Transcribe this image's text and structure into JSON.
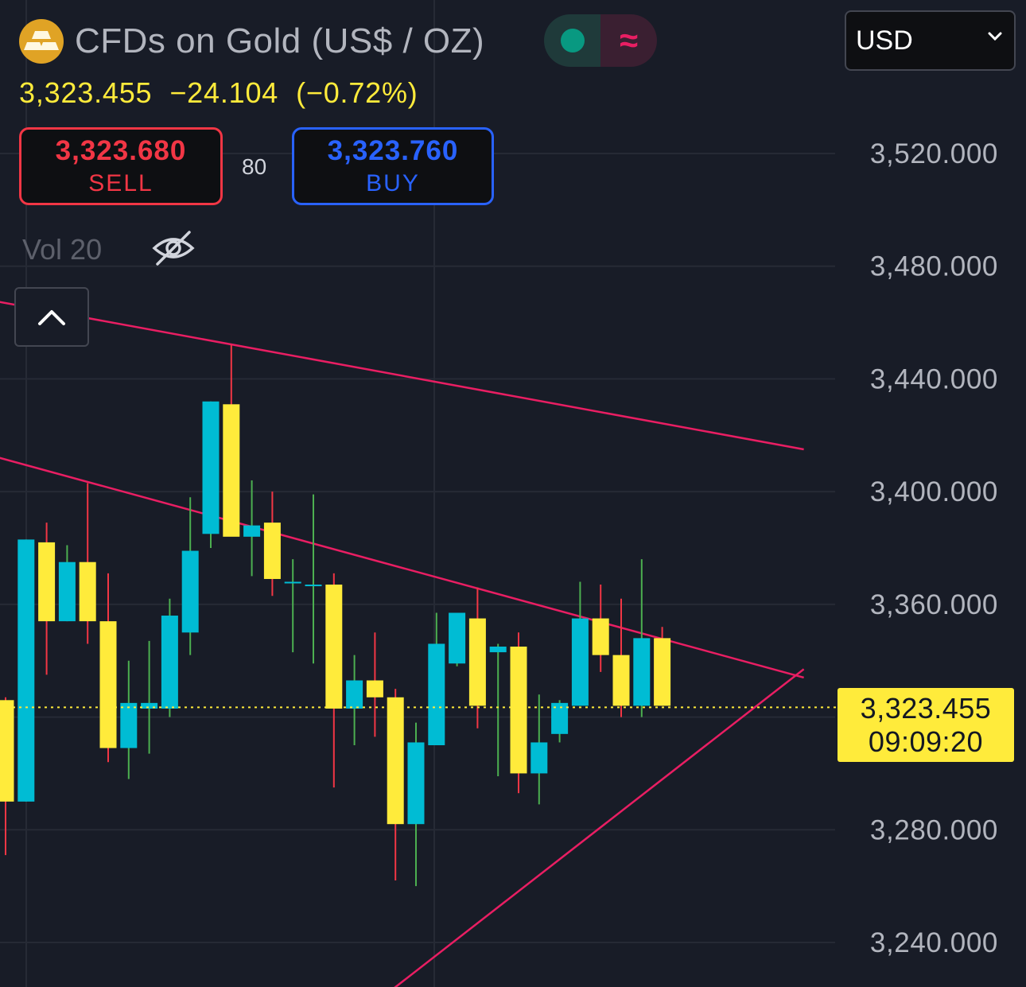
{
  "header": {
    "symbol_title": "CFDs on Gold (US$ / OZ)",
    "logo_icon": "gold-bars-icon",
    "status_icons": [
      "market-open-dot-icon",
      "delayed-data-wave-icon"
    ],
    "status_wave": "≈"
  },
  "quote": {
    "last": "3,323.455",
    "change": "−24.104",
    "change_pct": "(−0.72%)"
  },
  "trade": {
    "sell_price": "3,323.680",
    "sell_label": "SELL",
    "spread": "80",
    "buy_price": "3,323.760",
    "buy_label": "BUY"
  },
  "indicator": {
    "label": "Vol 20",
    "visibility_icon": "eye-off-icon"
  },
  "collapse_icon": "chevron-up-icon",
  "currency": {
    "selected": "USD",
    "icon": "chevron-down-icon"
  },
  "last_price_tag": {
    "price": "3,323.455",
    "countdown": "09:09:20"
  },
  "colors": {
    "background": "#181c27",
    "up_candle": "#00bcd4",
    "down_candle": "#ffeb3b",
    "wick_up": "#4caf50",
    "wick_down": "#f23645",
    "trendline": "#e91e63",
    "sell": "#f23645",
    "buy": "#2962ff",
    "last_price": "#ffeb3b"
  },
  "chart_data": {
    "type": "candlestick",
    "y_axis": {
      "ticks": [
        "3,520.000",
        "3,480.000",
        "3,440.000",
        "3,400.000",
        "3,360.000",
        "3,280.000",
        "3,240.000"
      ],
      "tick_values": [
        3520,
        3480,
        3440,
        3400,
        3360,
        3280,
        3240
      ],
      "range": [
        3224,
        3538
      ],
      "position": "right"
    },
    "grid": true,
    "last_price": 3323.455,
    "candles": [
      {
        "o": 3326,
        "h": 3327,
        "l": 3271,
        "c": 3290
      },
      {
        "o": 3290,
        "h": 3383,
        "l": 3290,
        "c": 3383
      },
      {
        "o": 3382,
        "h": 3389,
        "l": 3335,
        "c": 3354
      },
      {
        "o": 3354,
        "h": 3381,
        "l": 3354,
        "c": 3375
      },
      {
        "o": 3375,
        "h": 3403,
        "l": 3346,
        "c": 3354
      },
      {
        "o": 3354,
        "h": 3371,
        "l": 3304,
        "c": 3309
      },
      {
        "o": 3309,
        "h": 3340,
        "l": 3298,
        "c": 3325
      },
      {
        "o": 3323,
        "h": 3347,
        "l": 3307,
        "c": 3325
      },
      {
        "o": 3323,
        "h": 3362,
        "l": 3320,
        "c": 3356
      },
      {
        "o": 3350,
        "h": 3398,
        "l": 3342,
        "c": 3379
      },
      {
        "o": 3385,
        "h": 3432,
        "l": 3380,
        "c": 3432
      },
      {
        "o": 3431,
        "h": 3452,
        "l": 3385,
        "c": 3384
      },
      {
        "o": 3384,
        "h": 3404,
        "l": 3370,
        "c": 3388
      },
      {
        "o": 3389,
        "h": 3400,
        "l": 3363,
        "c": 3369
      },
      {
        "o": 3368,
        "h": 3376,
        "l": 3343,
        "c": 3368
      },
      {
        "o": 3367,
        "h": 3399,
        "l": 3339,
        "c": 3367
      },
      {
        "o": 3367,
        "h": 3371,
        "l": 3295,
        "c": 3323
      },
      {
        "o": 3323,
        "h": 3342,
        "l": 3310,
        "c": 3333
      },
      {
        "o": 3333,
        "h": 3350,
        "l": 3313,
        "c": 3327
      },
      {
        "o": 3327,
        "h": 3330,
        "l": 3262,
        "c": 3282
      },
      {
        "o": 3282,
        "h": 3318,
        "l": 3260,
        "c": 3311
      },
      {
        "o": 3310,
        "h": 3357,
        "l": 3310,
        "c": 3346
      },
      {
        "o": 3339,
        "h": 3357,
        "l": 3338,
        "c": 3357
      },
      {
        "o": 3355,
        "h": 3366,
        "l": 3316,
        "c": 3324
      },
      {
        "o": 3343,
        "h": 3346,
        "l": 3299,
        "c": 3345
      },
      {
        "o": 3345,
        "h": 3350,
        "l": 3293,
        "c": 3300
      },
      {
        "o": 3300,
        "h": 3328,
        "l": 3289,
        "c": 3311
      },
      {
        "o": 3314,
        "h": 3326,
        "l": 3311,
        "c": 3325
      },
      {
        "o": 3324,
        "h": 3368,
        "l": 3324,
        "c": 3355
      },
      {
        "o": 3355,
        "h": 3367,
        "l": 3336,
        "c": 3342
      },
      {
        "o": 3342,
        "h": 3362,
        "l": 3320,
        "c": 3324
      },
      {
        "o": 3324,
        "h": 3376,
        "l": 3320,
        "c": 3348
      },
      {
        "o": 3348,
        "h": 3352,
        "l": 3324,
        "c": 3324
      }
    ],
    "trendlines": [
      {
        "name": "upper-resistance",
        "from": {
          "bar": -0.8,
          "price": 3468
        },
        "to": {
          "bar": 38.9,
          "price": 3415
        }
      },
      {
        "name": "lower-resistance",
        "from": {
          "bar": -0.8,
          "price": 3413
        },
        "to": {
          "bar": 38.9,
          "price": 3334
        }
      },
      {
        "name": "rising-support",
        "from": {
          "bar": 16.5,
          "price": 3210
        },
        "to": {
          "bar": 38.9,
          "price": 3337
        }
      }
    ]
  }
}
